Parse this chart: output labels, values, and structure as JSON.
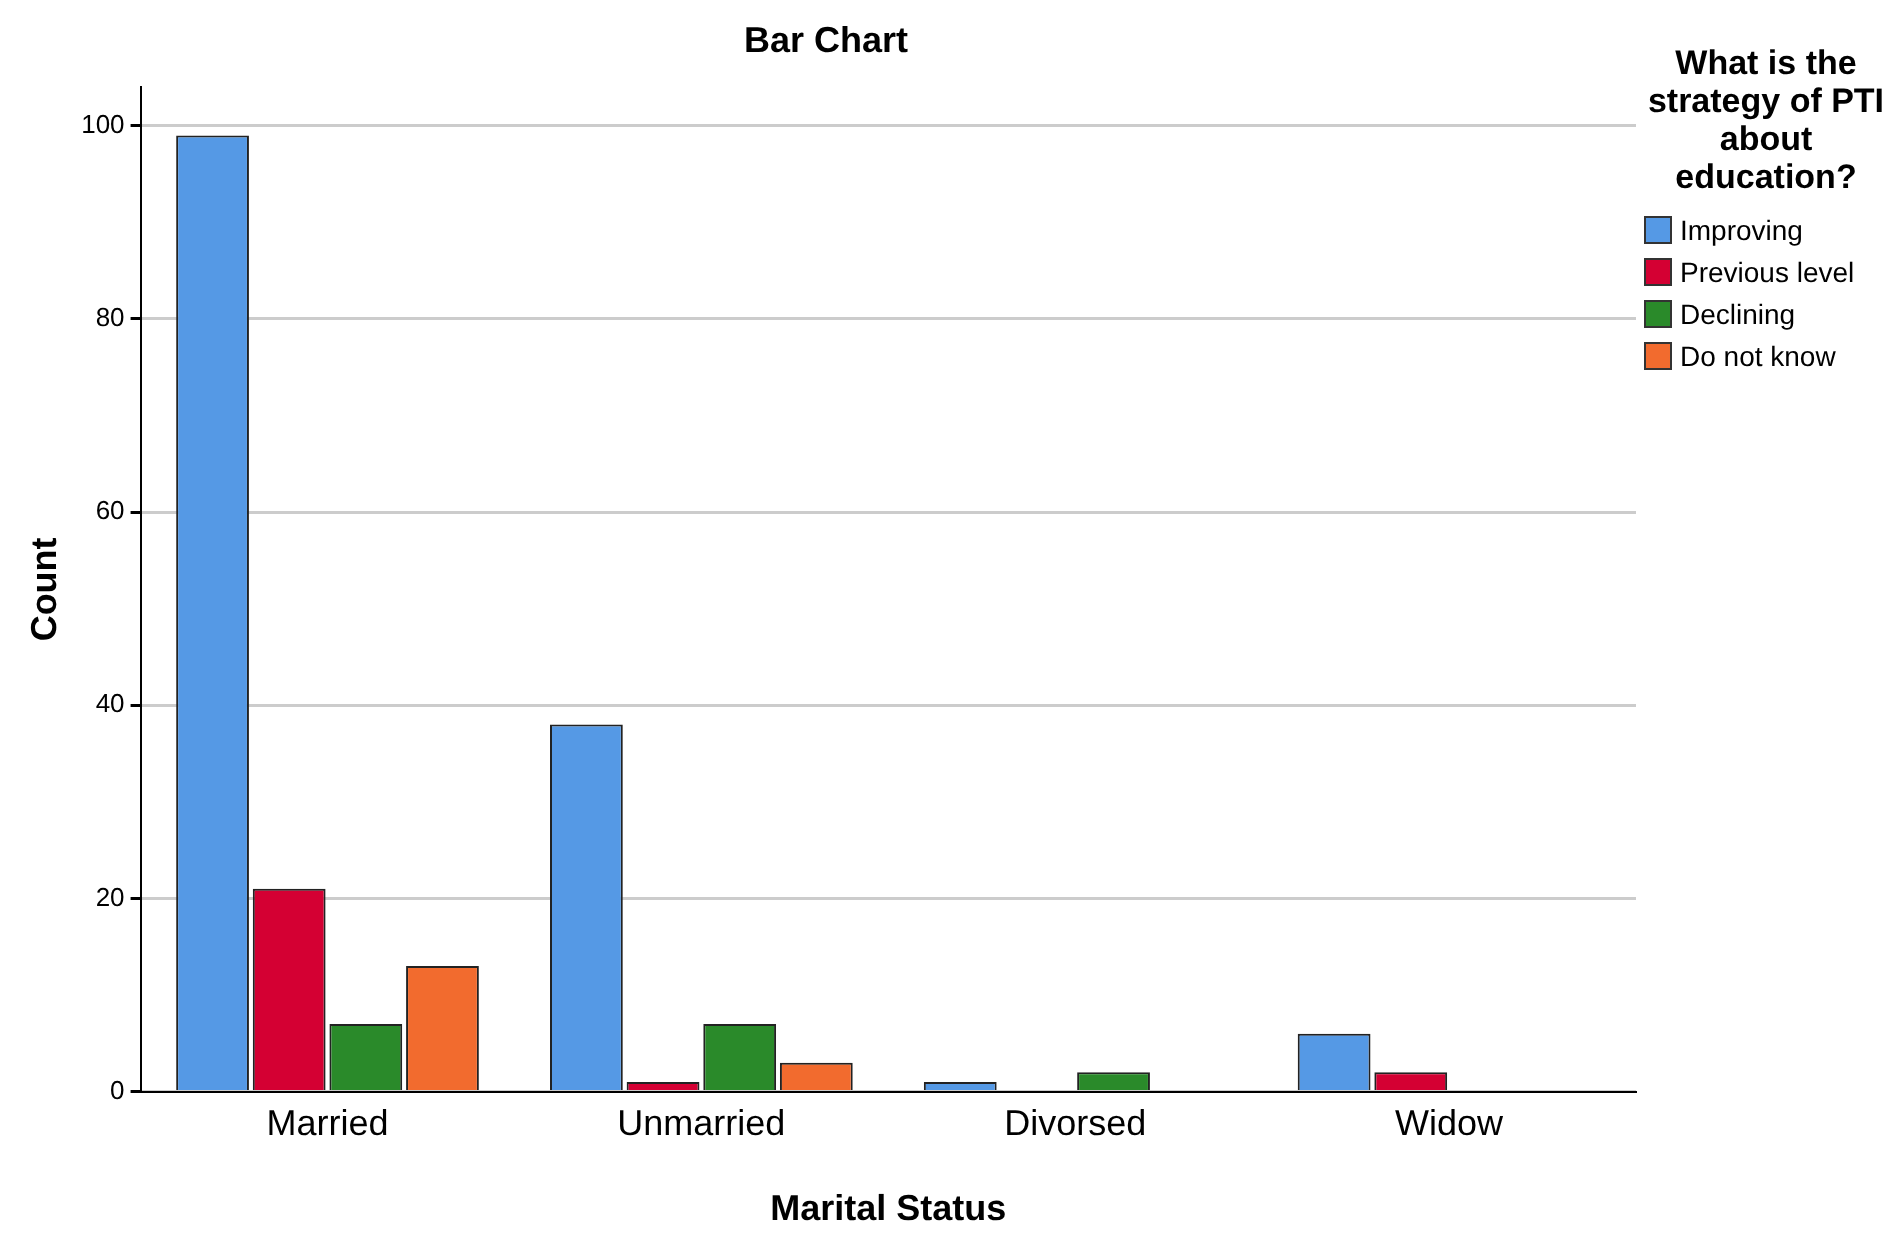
{
  "chart_data": {
    "type": "bar",
    "title": "Bar Chart",
    "xlabel": "Marital Status",
    "ylabel": "Count",
    "legend_title": "What is the strategy of PTI about education?",
    "legend": "top right",
    "grid": "y",
    "categories": [
      "Married",
      "Unmarried",
      "Divorsed",
      "Widow"
    ],
    "ylim": [
      0,
      104
    ],
    "yticks": [
      0,
      20,
      40,
      60,
      80,
      100
    ],
    "series": [
      {
        "name": "Improving",
        "color": "#5599e5",
        "values": [
          99,
          38,
          1,
          6
        ]
      },
      {
        "name": "Previous level",
        "color": "#d40033",
        "values": [
          21,
          1,
          0,
          2
        ]
      },
      {
        "name": "Declining",
        "color": "#2a8a2a",
        "values": [
          7,
          7,
          2,
          0
        ]
      },
      {
        "name": "Do not know",
        "color": "#f26b2e",
        "values": [
          13,
          3,
          0,
          0
        ]
      }
    ]
  }
}
